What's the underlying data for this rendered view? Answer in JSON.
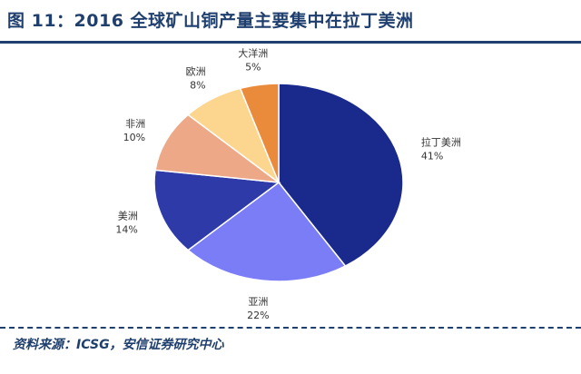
{
  "header": {
    "title": "图 11：2016 全球矿山铜产量主要集中在拉丁美洲"
  },
  "footer": {
    "source": "资料来源：ICSG，安信证券研究中心"
  },
  "chart_data": {
    "type": "pie",
    "title": "",
    "start_angle_deg": 0,
    "direction": "clockwise",
    "legend": "none",
    "slices": [
      {
        "name": "拉丁美洲",
        "value": 41,
        "label": "41%",
        "color": "#1a2a8c"
      },
      {
        "name": "亚洲",
        "value": 22,
        "label": "22%",
        "color": "#7b7df7"
      },
      {
        "name": "美洲",
        "value": 14,
        "label": "14%",
        "color": "#2e3aa8"
      },
      {
        "name": "非洲",
        "value": 10,
        "label": "10%",
        "color": "#eda987"
      },
      {
        "name": "欧洲",
        "value": 8,
        "label": "8%",
        "color": "#fcd58f"
      },
      {
        "name": "大洋洲",
        "value": 5,
        "label": "5%",
        "color": "#ea8b3c"
      }
    ]
  }
}
